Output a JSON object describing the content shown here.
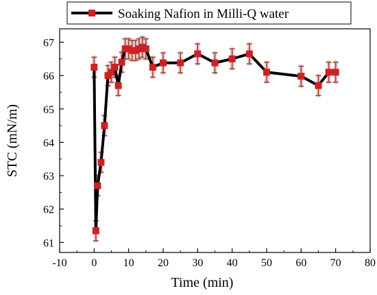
{
  "chart_data": {
    "type": "line",
    "xlabel": "Time (min)",
    "ylabel": "STC (mN/m)",
    "xlim": [
      -10,
      80
    ],
    "ylim": [
      60.7,
      67.4
    ],
    "xticks": [
      -10,
      0,
      10,
      20,
      30,
      40,
      50,
      60,
      70,
      80
    ],
    "yticks": [
      61,
      62,
      63,
      64,
      65,
      66,
      67
    ],
    "legend_position": "top",
    "grid": false,
    "colors": {
      "line": "#000000",
      "marker": "#cc2222",
      "error_bar": "#8a4a1a",
      "error_glow": "#f2b8d8"
    },
    "series": [
      {
        "name": "Soaking Nafion in Milli-Q water",
        "x": [
          0,
          0.5,
          1,
          2,
          3,
          4,
          5,
          6,
          7,
          8,
          9,
          10,
          11,
          12,
          13,
          14,
          15,
          17,
          20,
          25,
          30,
          35,
          40,
          45,
          50,
          60,
          65,
          68,
          70
        ],
        "y": [
          66.25,
          61.35,
          62.7,
          63.4,
          64.5,
          66.0,
          66.1,
          66.25,
          65.7,
          66.4,
          66.8,
          66.8,
          66.75,
          66.75,
          66.8,
          66.85,
          66.8,
          66.25,
          66.38,
          66.38,
          66.65,
          66.38,
          66.5,
          66.65,
          66.1,
          65.98,
          65.7,
          66.1,
          66.1
        ],
        "error": 0.3
      }
    ]
  }
}
